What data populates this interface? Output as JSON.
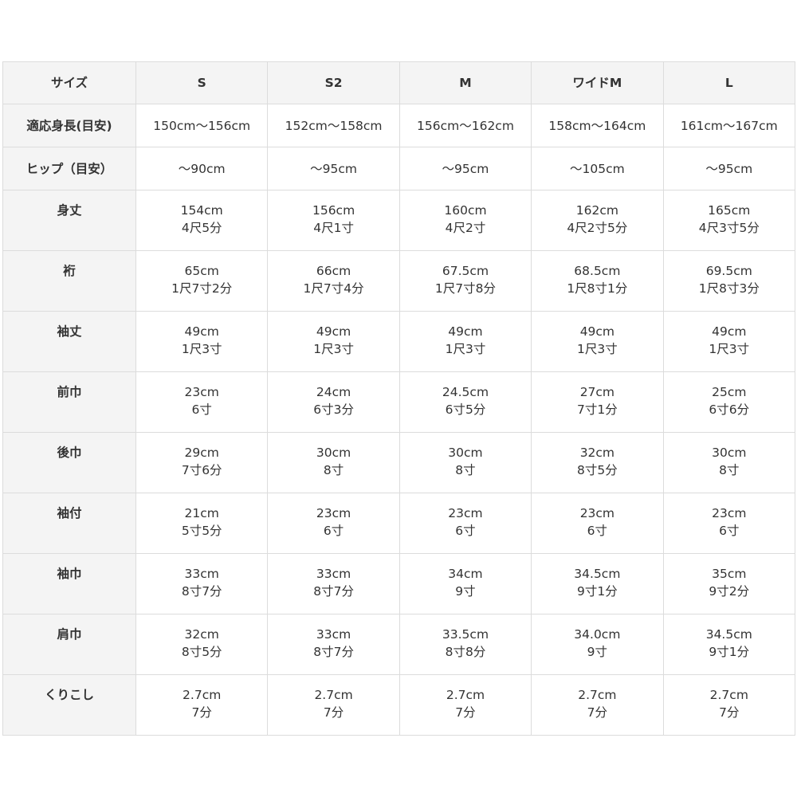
{
  "header": [
    "サイズ",
    "S",
    "S2",
    "M",
    "ワイドM",
    "L"
  ],
  "rows": [
    {
      "label": "適応身長(目安)",
      "values": [
        [
          "150cm〜156cm"
        ],
        [
          "152cm〜158cm"
        ],
        [
          "156cm〜162cm"
        ],
        [
          "158cm〜164cm"
        ],
        [
          "161cm〜167cm"
        ]
      ]
    },
    {
      "label": "ヒップ（目安）",
      "values": [
        [
          "〜90cm"
        ],
        [
          "〜95cm"
        ],
        [
          "〜95cm"
        ],
        [
          "〜105cm"
        ],
        [
          "〜95cm"
        ]
      ]
    },
    {
      "label": "身丈",
      "values": [
        [
          "154cm",
          "4尺5分"
        ],
        [
          "156cm",
          "4尺1寸"
        ],
        [
          "160cm",
          "4尺2寸"
        ],
        [
          "162cm",
          "4尺2寸5分"
        ],
        [
          "165cm",
          "4尺3寸5分"
        ]
      ]
    },
    {
      "label": "裄",
      "values": [
        [
          "65cm",
          "1尺7寸2分"
        ],
        [
          "66cm",
          "1尺7寸4分"
        ],
        [
          "67.5cm",
          "1尺7寸8分"
        ],
        [
          "68.5cm",
          "1尺8寸1分"
        ],
        [
          "69.5cm",
          "1尺8寸3分"
        ]
      ]
    },
    {
      "label": "袖丈",
      "values": [
        [
          "49cm",
          "1尺3寸"
        ],
        [
          "49cm",
          "1尺3寸"
        ],
        [
          "49cm",
          "1尺3寸"
        ],
        [
          "49cm",
          "1尺3寸"
        ],
        [
          "49cm",
          "1尺3寸"
        ]
      ]
    },
    {
      "label": "前巾",
      "values": [
        [
          "23cm",
          "6寸"
        ],
        [
          "24cm",
          "6寸3分"
        ],
        [
          "24.5cm",
          "6寸5分"
        ],
        [
          "27cm",
          "7寸1分"
        ],
        [
          "25cm",
          "6寸6分"
        ]
      ]
    },
    {
      "label": "後巾",
      "values": [
        [
          "29cm",
          "7寸6分"
        ],
        [
          "30cm",
          "8寸"
        ],
        [
          "30cm",
          "8寸"
        ],
        [
          "32cm",
          "8寸5分"
        ],
        [
          "30cm",
          "8寸"
        ]
      ]
    },
    {
      "label": "袖付",
      "values": [
        [
          "21cm",
          "5寸5分"
        ],
        [
          "23cm",
          "6寸"
        ],
        [
          "23cm",
          "6寸"
        ],
        [
          "23cm",
          "6寸"
        ],
        [
          "23cm",
          "6寸"
        ]
      ]
    },
    {
      "label": "袖巾",
      "values": [
        [
          "33cm",
          "8寸7分"
        ],
        [
          "33cm",
          "8寸7分"
        ],
        [
          "34cm",
          "9寸"
        ],
        [
          "34.5cm",
          "9寸1分"
        ],
        [
          "35cm",
          "9寸2分"
        ]
      ]
    },
    {
      "label": "肩巾",
      "values": [
        [
          "32cm",
          "8寸5分"
        ],
        [
          "33cm",
          "8寸7分"
        ],
        [
          "33.5cm",
          "8寸8分"
        ],
        [
          "34.0cm",
          "9寸"
        ],
        [
          "34.5cm",
          "9寸1分"
        ]
      ]
    },
    {
      "label": "くりこし",
      "values": [
        [
          "2.7cm",
          "7分"
        ],
        [
          "2.7cm",
          "7分"
        ],
        [
          "2.7cm",
          "7分"
        ],
        [
          "2.7cm",
          "7分"
        ],
        [
          "2.7cm",
          "7分"
        ]
      ]
    }
  ]
}
